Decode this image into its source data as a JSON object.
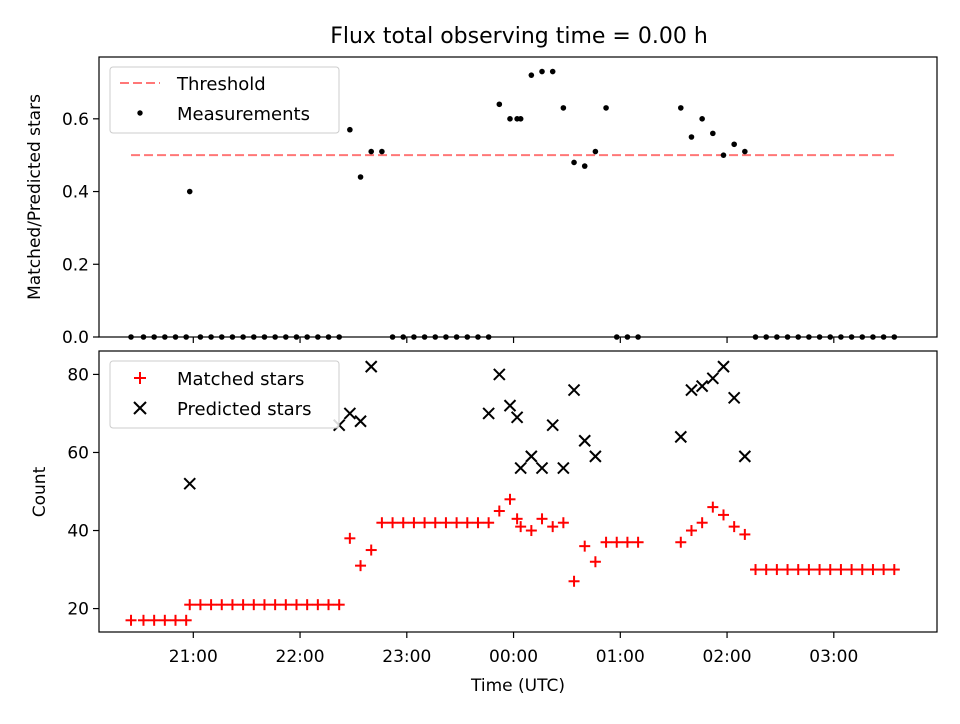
{
  "figure_title": "Flux total observing time = 0.00 h",
  "colors": {
    "threshold": "#ff7777",
    "measurements": "#000000",
    "matched": "#ff0000",
    "predicted": "#000000"
  },
  "chart_data": [
    {
      "type": "scatter",
      "title": "Flux total observing time = 0.00 h",
      "xlabel": "",
      "ylabel": "Matched/Predicted stars",
      "xlim": [
        "20:07",
        "03:58"
      ],
      "ylim": [
        0,
        0.77
      ],
      "yticks": [
        0.0,
        0.2,
        0.4,
        0.6
      ],
      "ytick_labels": [
        "0.0",
        "0.2",
        "0.4",
        "0.6"
      ],
      "grid": false,
      "legend_position": "top-left",
      "threshold": {
        "name": "Threshold",
        "y": 0.5,
        "x_start": "20:25",
        "x_end": "03:36"
      },
      "series": [
        {
          "name": "Measurements",
          "marker": "dot",
          "x": [
            "20:25",
            "20:32",
            "20:38",
            "20:44",
            "20:50",
            "20:56",
            "20:58",
            "21:04",
            "21:10",
            "21:16",
            "21:22",
            "21:28",
            "21:34",
            "21:40",
            "21:46",
            "21:52",
            "21:58",
            "22:04",
            "22:10",
            "22:16",
            "22:22",
            "22:28",
            "22:34",
            "22:40",
            "22:46",
            "22:52",
            "22:58",
            "23:04",
            "23:10",
            "23:16",
            "23:22",
            "23:28",
            "23:34",
            "23:40",
            "23:46",
            "23:52",
            "23:58",
            "00:02",
            "00:04",
            "00:10",
            "00:16",
            "00:22",
            "00:28",
            "00:34",
            "00:40",
            "00:46",
            "00:52",
            "00:58",
            "01:04",
            "01:10",
            "01:34",
            "01:40",
            "01:46",
            "01:52",
            "01:58",
            "02:04",
            "02:10",
            "02:16",
            "02:22",
            "02:28",
            "02:34",
            "02:40",
            "02:46",
            "02:52",
            "02:58",
            "03:04",
            "03:10",
            "03:16",
            "03:22",
            "03:28",
            "03:34"
          ],
          "y": [
            0,
            0,
            0,
            0,
            0,
            0,
            0.4,
            0,
            0,
            0,
            0,
            0,
            0,
            0,
            0,
            0,
            0,
            0,
            0,
            0,
            0,
            0.57,
            0.44,
            0.51,
            0.51,
            0,
            0,
            0,
            0,
            0,
            0,
            0,
            0,
            0,
            0,
            0.64,
            0.6,
            0.6,
            0.6,
            0.72,
            0.73,
            0.73,
            0.63,
            0.48,
            0.47,
            0.51,
            0.63,
            0,
            0,
            0,
            0.63,
            0.55,
            0.6,
            0.56,
            0.5,
            0.53,
            0.51,
            0,
            0,
            0,
            0,
            0,
            0,
            0,
            0,
            0,
            0,
            0,
            0,
            0,
            0
          ]
        }
      ]
    },
    {
      "type": "scatter",
      "xlabel": "Time (UTC)",
      "ylabel": "Count",
      "xlim": [
        "20:07",
        "03:58"
      ],
      "ylim": [
        14,
        86
      ],
      "xticks": [
        "21:00",
        "22:00",
        "23:00",
        "00:00",
        "01:00",
        "02:00",
        "03:00"
      ],
      "yticks": [
        20,
        40,
        60,
        80
      ],
      "ytick_labels": [
        "20",
        "40",
        "60",
        "80"
      ],
      "grid": false,
      "legend_position": "top-left",
      "series": [
        {
          "name": "Matched stars",
          "marker": "plus",
          "x": [
            "20:25",
            "20:32",
            "20:38",
            "20:44",
            "20:50",
            "20:56",
            "20:58",
            "21:04",
            "21:10",
            "21:16",
            "21:22",
            "21:28",
            "21:34",
            "21:40",
            "21:46",
            "21:52",
            "21:58",
            "22:04",
            "22:10",
            "22:16",
            "22:22",
            "22:28",
            "22:34",
            "22:40",
            "22:46",
            "22:52",
            "22:58",
            "23:04",
            "23:10",
            "23:16",
            "23:22",
            "23:28",
            "23:34",
            "23:40",
            "23:46",
            "23:52",
            "23:58",
            "00:02",
            "00:04",
            "00:10",
            "00:16",
            "00:22",
            "00:28",
            "00:34",
            "00:40",
            "00:46",
            "00:52",
            "00:58",
            "01:04",
            "01:10",
            "01:34",
            "01:40",
            "01:46",
            "01:52",
            "01:58",
            "02:04",
            "02:10",
            "02:16",
            "02:22",
            "02:28",
            "02:34",
            "02:40",
            "02:46",
            "02:52",
            "02:58",
            "03:04",
            "03:10",
            "03:16",
            "03:22",
            "03:28",
            "03:34"
          ],
          "y": [
            17,
            17,
            17,
            17,
            17,
            17,
            21,
            21,
            21,
            21,
            21,
            21,
            21,
            21,
            21,
            21,
            21,
            21,
            21,
            21,
            21,
            38,
            31,
            35,
            42,
            42,
            42,
            42,
            42,
            42,
            42,
            42,
            42,
            42,
            42,
            45,
            48,
            43,
            41,
            40,
            43,
            41,
            42,
            27,
            36,
            32,
            37,
            37,
            37,
            37,
            37,
            40,
            42,
            46,
            44,
            41,
            39,
            30,
            30,
            30,
            30,
            30,
            30,
            30,
            30,
            30,
            30,
            30,
            30,
            30,
            30
          ]
        },
        {
          "name": "Predicted stars",
          "marker": "x",
          "x": [
            "20:58",
            "22:22",
            "22:28",
            "22:34",
            "22:40",
            "23:46",
            "23:52",
            "23:58",
            "00:02",
            "00:04",
            "00:10",
            "00:16",
            "00:22",
            "00:28",
            "00:34",
            "00:40",
            "00:46",
            "01:34",
            "01:40",
            "01:46",
            "01:52",
            "01:58",
            "02:04",
            "02:10"
          ],
          "y": [
            52,
            67,
            70,
            68,
            82,
            70,
            80,
            72,
            69,
            56,
            59,
            56,
            67,
            56,
            76,
            63,
            59,
            64,
            76,
            77,
            79,
            82,
            74,
            59
          ]
        }
      ]
    }
  ]
}
